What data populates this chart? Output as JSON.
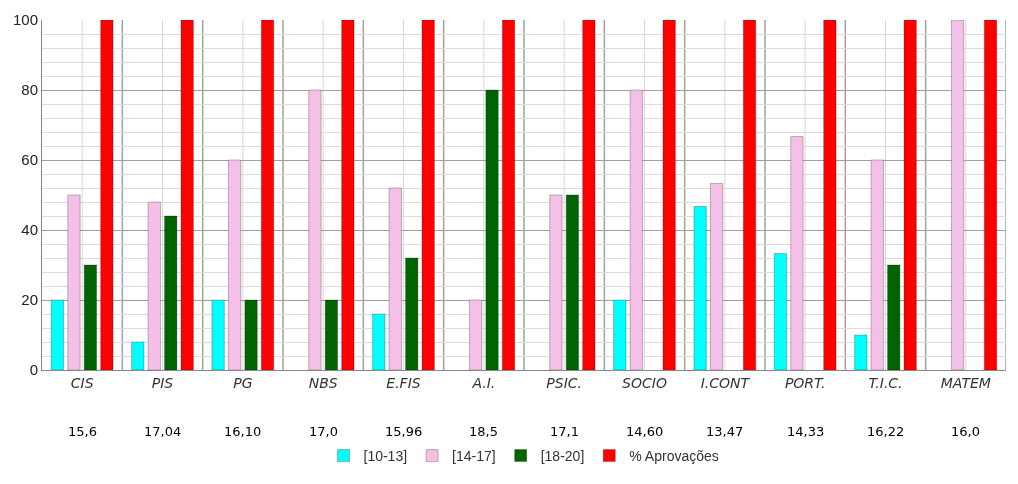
{
  "chart_data": {
    "type": "bar",
    "categories": [
      "CIS",
      "PIS",
      "PG",
      "NBS",
      "E.FIS",
      "A.I.",
      "PSIC.",
      "SOCIO",
      "I.CONT",
      "PORT.",
      "T.I.C.",
      "MATEM"
    ],
    "series": [
      {
        "name": "[10-13]",
        "color": "#00ffff",
        "values": [
          20,
          8,
          20,
          null,
          16,
          null,
          null,
          20,
          46.7,
          33.3,
          10,
          null
        ]
      },
      {
        "name": "[14-17]",
        "color": "#f5c0e8",
        "values": [
          50,
          48,
          60,
          80,
          52,
          20,
          50,
          80,
          53.3,
          66.7,
          60,
          100
        ]
      },
      {
        "name": "[18-20]",
        "color": "#006400",
        "values": [
          30,
          44,
          20,
          20,
          32,
          80,
          50,
          null,
          null,
          null,
          30,
          null
        ]
      },
      {
        "name": "% Aprovações",
        "color": "#ff0000",
        "values": [
          100,
          100,
          100,
          100,
          100,
          100,
          100,
          100,
          100,
          100,
          100,
          100
        ]
      }
    ],
    "ylim": [
      0,
      100
    ],
    "yticks": [
      0,
      20,
      40,
      60,
      80,
      100
    ],
    "grid": true,
    "legend": "bottom",
    "annotations": [
      "15,6",
      "17,04",
      "16,10",
      "17,0",
      "15,96",
      "18,5",
      "17,1",
      "14,60",
      "13,47",
      "14,33",
      "16,22",
      "16,0"
    ]
  }
}
